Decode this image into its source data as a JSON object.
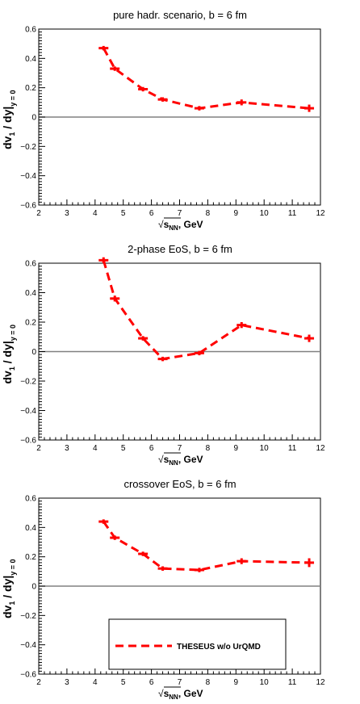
{
  "chart_data": [
    {
      "type": "line",
      "title": "pure hadr. scenario, b = 6 fm",
      "xlabel": "√s_NN, GeV",
      "ylabel": "dv_1 / dy|_y=0",
      "xlim": [
        2,
        12
      ],
      "ylim": [
        -0.6,
        0.6
      ],
      "xticks": [
        "2",
        "3",
        "4",
        "5",
        "6",
        "7",
        "8",
        "9",
        "10",
        "11",
        "12"
      ],
      "yticks": [
        "−0.6",
        "−0.4",
        "−0.2",
        "0",
        "0.2",
        "0.4",
        "0.6"
      ],
      "series": [
        {
          "x": [
            4.3,
            4.7,
            5.7,
            6.4,
            7.7,
            9.2,
            11.6
          ],
          "y": [
            0.47,
            0.33,
            0.19,
            0.12,
            0.06,
            0.1,
            0.06
          ],
          "yerr": [
            0.015,
            0.015,
            0.015,
            0.015,
            0.015,
            0.02,
            0.025
          ]
        }
      ]
    },
    {
      "type": "line",
      "title": "2-phase EoS, b = 6 fm",
      "xlabel": "√s_NN, GeV",
      "ylabel": "dv_1 / dy|_y=0",
      "xlim": [
        2,
        12
      ],
      "ylim": [
        -0.6,
        0.6
      ],
      "xticks": [
        "2",
        "3",
        "4",
        "5",
        "6",
        "7",
        "8",
        "9",
        "10",
        "11",
        "12"
      ],
      "yticks": [
        "−0.6",
        "−0.4",
        "−0.2",
        "0",
        "0.2",
        "0.4",
        "0.6"
      ],
      "series": [
        {
          "x": [
            4.3,
            4.7,
            5.7,
            6.4,
            7.7,
            9.2,
            11.6
          ],
          "y": [
            0.62,
            0.36,
            0.09,
            -0.05,
            -0.01,
            0.18,
            0.09
          ],
          "yerr": [
            0.02,
            0.02,
            0.015,
            0.015,
            0.015,
            0.02,
            0.025
          ]
        }
      ]
    },
    {
      "type": "line",
      "title": "crossover EoS, b = 6 fm",
      "xlabel": "√s_NN, GeV",
      "ylabel": "dv_1 / dy|_y=0",
      "xlim": [
        2,
        12
      ],
      "ylim": [
        -0.6,
        0.6
      ],
      "xticks": [
        "2",
        "3",
        "4",
        "5",
        "6",
        "7",
        "8",
        "9",
        "10",
        "11",
        "12"
      ],
      "yticks": [
        "−0.6",
        "−0.4",
        "−0.2",
        "0",
        "0.2",
        "0.4",
        "0.6"
      ],
      "series": [
        {
          "name": "THESEUS w/o UrQMD",
          "x": [
            4.3,
            4.7,
            5.7,
            6.4,
            7.7,
            9.2,
            11.6
          ],
          "y": [
            0.44,
            0.33,
            0.22,
            0.12,
            0.11,
            0.17,
            0.16
          ],
          "yerr": [
            0.015,
            0.015,
            0.015,
            0.015,
            0.015,
            0.02,
            0.03
          ]
        }
      ],
      "legend": "bottom-center"
    }
  ],
  "colors": {
    "series": "#ff0000",
    "zero_line": "#808080",
    "axes": "#000000"
  }
}
